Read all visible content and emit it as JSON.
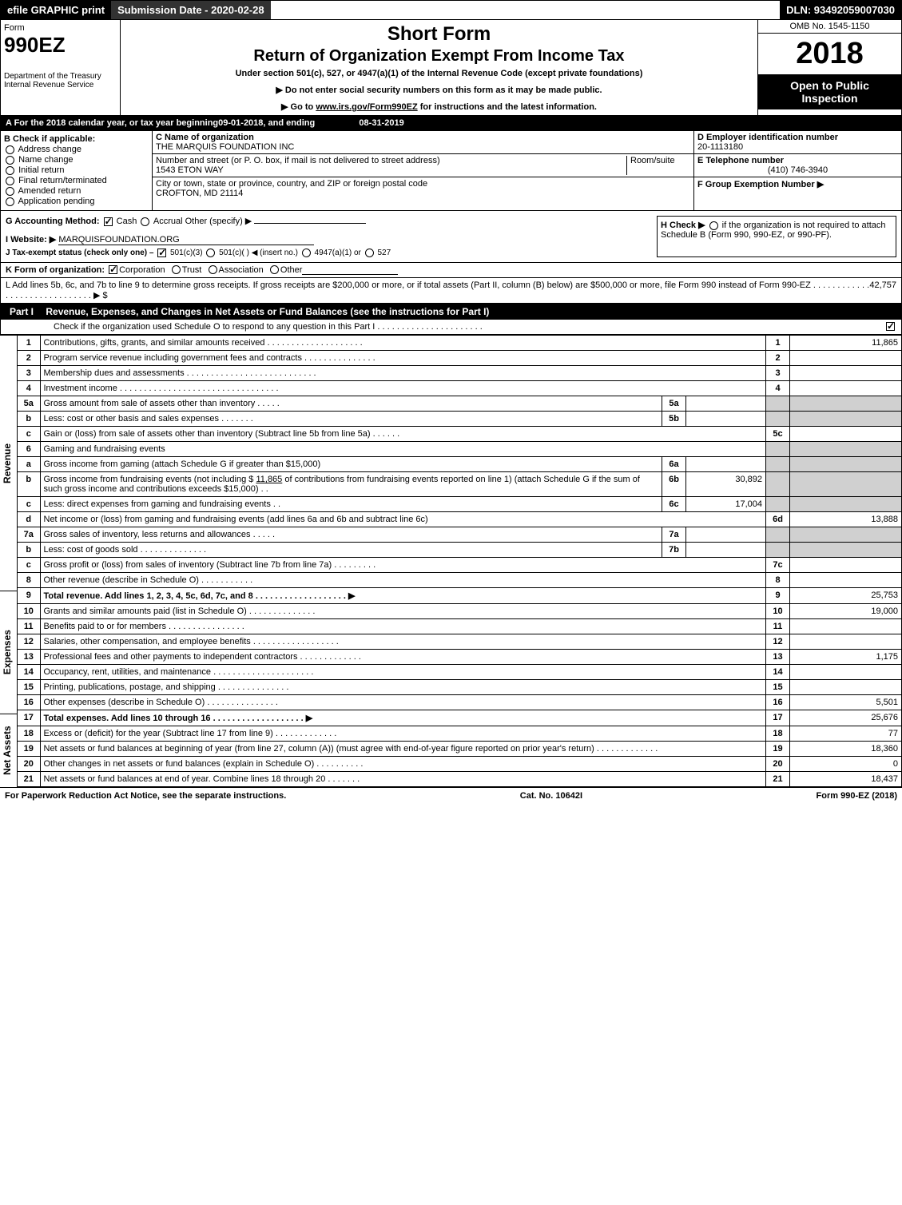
{
  "topbar": {
    "efile": "efile GRAPHIC print",
    "subdate_label": "Submission Date - 2020-02-28",
    "dln": "DLN: 93492059007030"
  },
  "header": {
    "form_label": "Form",
    "form_number": "990EZ",
    "dept": "Department of the Treasury",
    "irs": "Internal Revenue Service",
    "title_short": "Short Form",
    "title_main": "Return of Organization Exempt From Income Tax",
    "subtitle": "Under section 501(c), 527, or 4947(a)(1) of the Internal Revenue Code (except private foundations)",
    "instr1": "▶ Do not enter social security numbers on this form as it may be made public.",
    "instr2_pre": "▶ Go to ",
    "instr2_link": "www.irs.gov/Form990EZ",
    "instr2_post": " for instructions and the latest information.",
    "omb": "OMB No. 1545-1150",
    "year": "2018",
    "open": "Open to Public Inspection"
  },
  "row_a": {
    "text_pre": "A For the 2018 calendar year, or tax year beginning ",
    "begin": "09-01-2018",
    "mid": ", and ending ",
    "end": "08-31-2019"
  },
  "box_b": {
    "label": "B Check if applicable:",
    "addr": "Address change",
    "name": "Name change",
    "init": "Initial return",
    "final": "Final return/terminated",
    "amend": "Amended return",
    "app": "Application pending"
  },
  "box_c": {
    "label": "C Name of organization",
    "name": "THE MARQUIS FOUNDATION INC",
    "street_label": "Number and street (or P. O. box, if mail is not delivered to street address)",
    "room_label": "Room/suite",
    "street": "1543 ETON WAY",
    "city_label": "City or town, state or province, country, and ZIP or foreign postal code",
    "city": "CROFTON, MD  21114"
  },
  "box_d": {
    "label": "D Employer identification number",
    "ein": "20-1113180"
  },
  "box_e": {
    "label": "E Telephone number",
    "phone": "(410) 746-3940"
  },
  "box_f": {
    "label": "F Group Exemption Number  ▶"
  },
  "line_g": {
    "label": "G Accounting Method:",
    "cash": "Cash",
    "accrual": "Accrual",
    "other": "Other (specify) ▶"
  },
  "line_h": {
    "text": "H  Check ▶",
    "text2": "if the organization is not required to attach Schedule B (Form 990, 990-EZ, or 990-PF)."
  },
  "line_i": {
    "label": "I Website: ▶",
    "site": "MARQUISFOUNDATION.ORG"
  },
  "line_j": {
    "label": "J Tax-exempt status (check only one) –",
    "o1": "501(c)(3)",
    "o2": "501(c)(   ) ◀ (insert no.)",
    "o3": "4947(a)(1) or",
    "o4": "527"
  },
  "line_k": {
    "label": "K Form of organization:",
    "corp": "Corporation",
    "trust": "Trust",
    "assoc": "Association",
    "other": "Other"
  },
  "line_l": {
    "text": "L Add lines 5b, 6c, and 7b to line 9 to determine gross receipts. If gross receipts are $200,000 or more, or if total assets (Part II, column (B) below) are $500,000 or more, file Form 990 instead of Form 990-EZ  .  .  .  .  .  .  .  .  .  .  .  .  .  .  .  .  .  .  .  .  .  .  .  .  .  .  .  .  .  .  ▶ $ ",
    "amount": "42,757"
  },
  "part1": {
    "label": "Part I",
    "title": "Revenue, Expenses, and Changes in Net Assets or Fund Balances (see the instructions for Part I)",
    "check_line": "Check if the organization used Schedule O to respond to any question in this Part I  .  .  .  .  .  .  .  .  .  .  .  .  .  .  .  .  .  .  .  .  .  .  "
  },
  "sections": {
    "revenue": "Revenue",
    "expenses": "Expenses",
    "netassets": "Net Assets"
  },
  "lines": {
    "l1": {
      "n": "1",
      "d": "Contributions, gifts, grants, and similar amounts received  .  .  .  .  .  .  .  .  .  .  .  .  .  .  .  .  .  .  .  .",
      "rn": "1",
      "v": "11,865"
    },
    "l2": {
      "n": "2",
      "d": "Program service revenue including government fees and contracts  .  .  .  .  .  .  .  .  .  .  .  .  .  .  .",
      "rn": "2",
      "v": ""
    },
    "l3": {
      "n": "3",
      "d": "Membership dues and assessments  .  .  .  .  .  .  .  .  .  .  .  .  .  .  .  .  .  .  .  .  .  .  .  .  .  .  .",
      "rn": "3",
      "v": ""
    },
    "l4": {
      "n": "4",
      "d": "Investment income  .  .  .  .  .  .  .  .  .  .  .  .  .  .  .  .  .  .  .  .  .  .  .  .  .  .  .  .  .  .  .  .  .",
      "rn": "4",
      "v": ""
    },
    "l5a": {
      "n": "5a",
      "d": "Gross amount from sale of assets other than inventory  .  .  .  .  .",
      "sub": "5a",
      "sv": ""
    },
    "l5b": {
      "n": "b",
      "d": "Less: cost or other basis and sales expenses  .  .  .  .  .  .  .",
      "sub": "5b",
      "sv": ""
    },
    "l5c": {
      "n": "c",
      "d": "Gain or (loss) from sale of assets other than inventory (Subtract line 5b from line 5a)  .  .  .  .  .  .",
      "rn": "5c",
      "v": ""
    },
    "l6": {
      "n": "6",
      "d": "Gaming and fundraising events"
    },
    "l6a": {
      "n": "a",
      "d": "Gross income from gaming (attach Schedule G if greater than $15,000)",
      "sub": "6a",
      "sv": ""
    },
    "l6b": {
      "n": "b",
      "d_pre": "Gross income from fundraising events (not including $ ",
      "d_amt": "11,865",
      "d_post": " of contributions from fundraising events reported on line 1) (attach Schedule G if the sum of such gross income and contributions exceeds $15,000)   .  .",
      "sub": "6b",
      "sv": "30,892"
    },
    "l6c": {
      "n": "c",
      "d": "Less: direct expenses from gaming and fundraising events      .  .",
      "sub": "6c",
      "sv": "17,004"
    },
    "l6d": {
      "n": "d",
      "d": "Net income or (loss) from gaming and fundraising events (add lines 6a and 6b and subtract line 6c)",
      "rn": "6d",
      "v": "13,888"
    },
    "l7a": {
      "n": "7a",
      "d": "Gross sales of inventory, less returns and allowances  .  .  .  .  .",
      "sub": "7a",
      "sv": ""
    },
    "l7b": {
      "n": "b",
      "d": "Less: cost of goods sold       .  .  .  .  .  .  .  .  .  .  .  .  .  .",
      "sub": "7b",
      "sv": ""
    },
    "l7c": {
      "n": "c",
      "d": "Gross profit or (loss) from sales of inventory (Subtract line 7b from line 7a)  .  .  .  .  .  .  .  .  .",
      "rn": "7c",
      "v": ""
    },
    "l8": {
      "n": "8",
      "d": "Other revenue (describe in Schedule O)                  .  .  .  .  .  .  .  .  .  .  .",
      "rn": "8",
      "v": ""
    },
    "l9": {
      "n": "9",
      "d": "Total revenue. Add lines 1, 2, 3, 4, 5c, 6d, 7c, and 8  .  .  .  .  .  .  .  .  .  .  .  .  .  .  .  .  .  .  . ▶",
      "rn": "9",
      "v": "25,753",
      "bold": true
    },
    "l10": {
      "n": "10",
      "d": "Grants and similar amounts paid (list in Schedule O)        .  .  .  .  .  .  .  .  .  .  .  .  .  .",
      "rn": "10",
      "v": "19,000"
    },
    "l11": {
      "n": "11",
      "d": "Benefits paid to or for members               .  .  .  .  .  .  .  .  .  .  .  .  .  .  .  .",
      "rn": "11",
      "v": ""
    },
    "l12": {
      "n": "12",
      "d": "Salaries, other compensation, and employee benefits .  .  .  .  .  .  .  .  .  .  .  .  .  .  .  .  .  .",
      "rn": "12",
      "v": ""
    },
    "l13": {
      "n": "13",
      "d": "Professional fees and other payments to independent contractors  .  .  .  .  .  .  .  .  .  .  .  .  .",
      "rn": "13",
      "v": "1,175"
    },
    "l14": {
      "n": "14",
      "d": "Occupancy, rent, utilities, and maintenance .  .  .  .  .  .  .  .  .  .  .  .  .  .  .  .  .  .  .  .  .",
      "rn": "14",
      "v": ""
    },
    "l15": {
      "n": "15",
      "d": "Printing, publications, postage, and shipping          .  .  .  .  .  .  .  .  .  .  .  .  .  .  .",
      "rn": "15",
      "v": ""
    },
    "l16": {
      "n": "16",
      "d": "Other expenses (describe in Schedule O)            .  .  .  .  .  .  .  .  .  .  .  .  .  .  .",
      "rn": "16",
      "v": "5,501"
    },
    "l17": {
      "n": "17",
      "d": "Total expenses. Add lines 10 through 16      .  .  .  .  .  .  .  .  .  .  .  .  .  .  .  .  .  .  . ▶",
      "rn": "17",
      "v": "25,676",
      "bold": true
    },
    "l18": {
      "n": "18",
      "d": "Excess or (deficit) for the year (Subtract line 17 from line 9)      .  .  .  .  .  .  .  .  .  .  .  .  .",
      "rn": "18",
      "v": "77"
    },
    "l19": {
      "n": "19",
      "d": "Net assets or fund balances at beginning of year (from line 27, column (A)) (must agree with end-of-year figure reported on prior year's return)          .  .  .  .  .  .  .  .  .  .  .  .  .",
      "rn": "19",
      "v": "18,360"
    },
    "l20": {
      "n": "20",
      "d": "Other changes in net assets or fund balances (explain in Schedule O)    .  .  .  .  .  .  .  .  .  .",
      "rn": "20",
      "v": "0"
    },
    "l21": {
      "n": "21",
      "d": "Net assets or fund balances at end of year. Combine lines 18 through 20      .  .  .  .  .  .  .",
      "rn": "21",
      "v": "18,437"
    }
  },
  "footer": {
    "left": "For Paperwork Reduction Act Notice, see the separate instructions.",
    "mid": "Cat. No. 10642I",
    "right": "Form 990-EZ (2018)"
  },
  "colors": {
    "black": "#000000",
    "white": "#ffffff",
    "grey_cell": "#d0d0d0",
    "dark_grey": "#323232"
  }
}
